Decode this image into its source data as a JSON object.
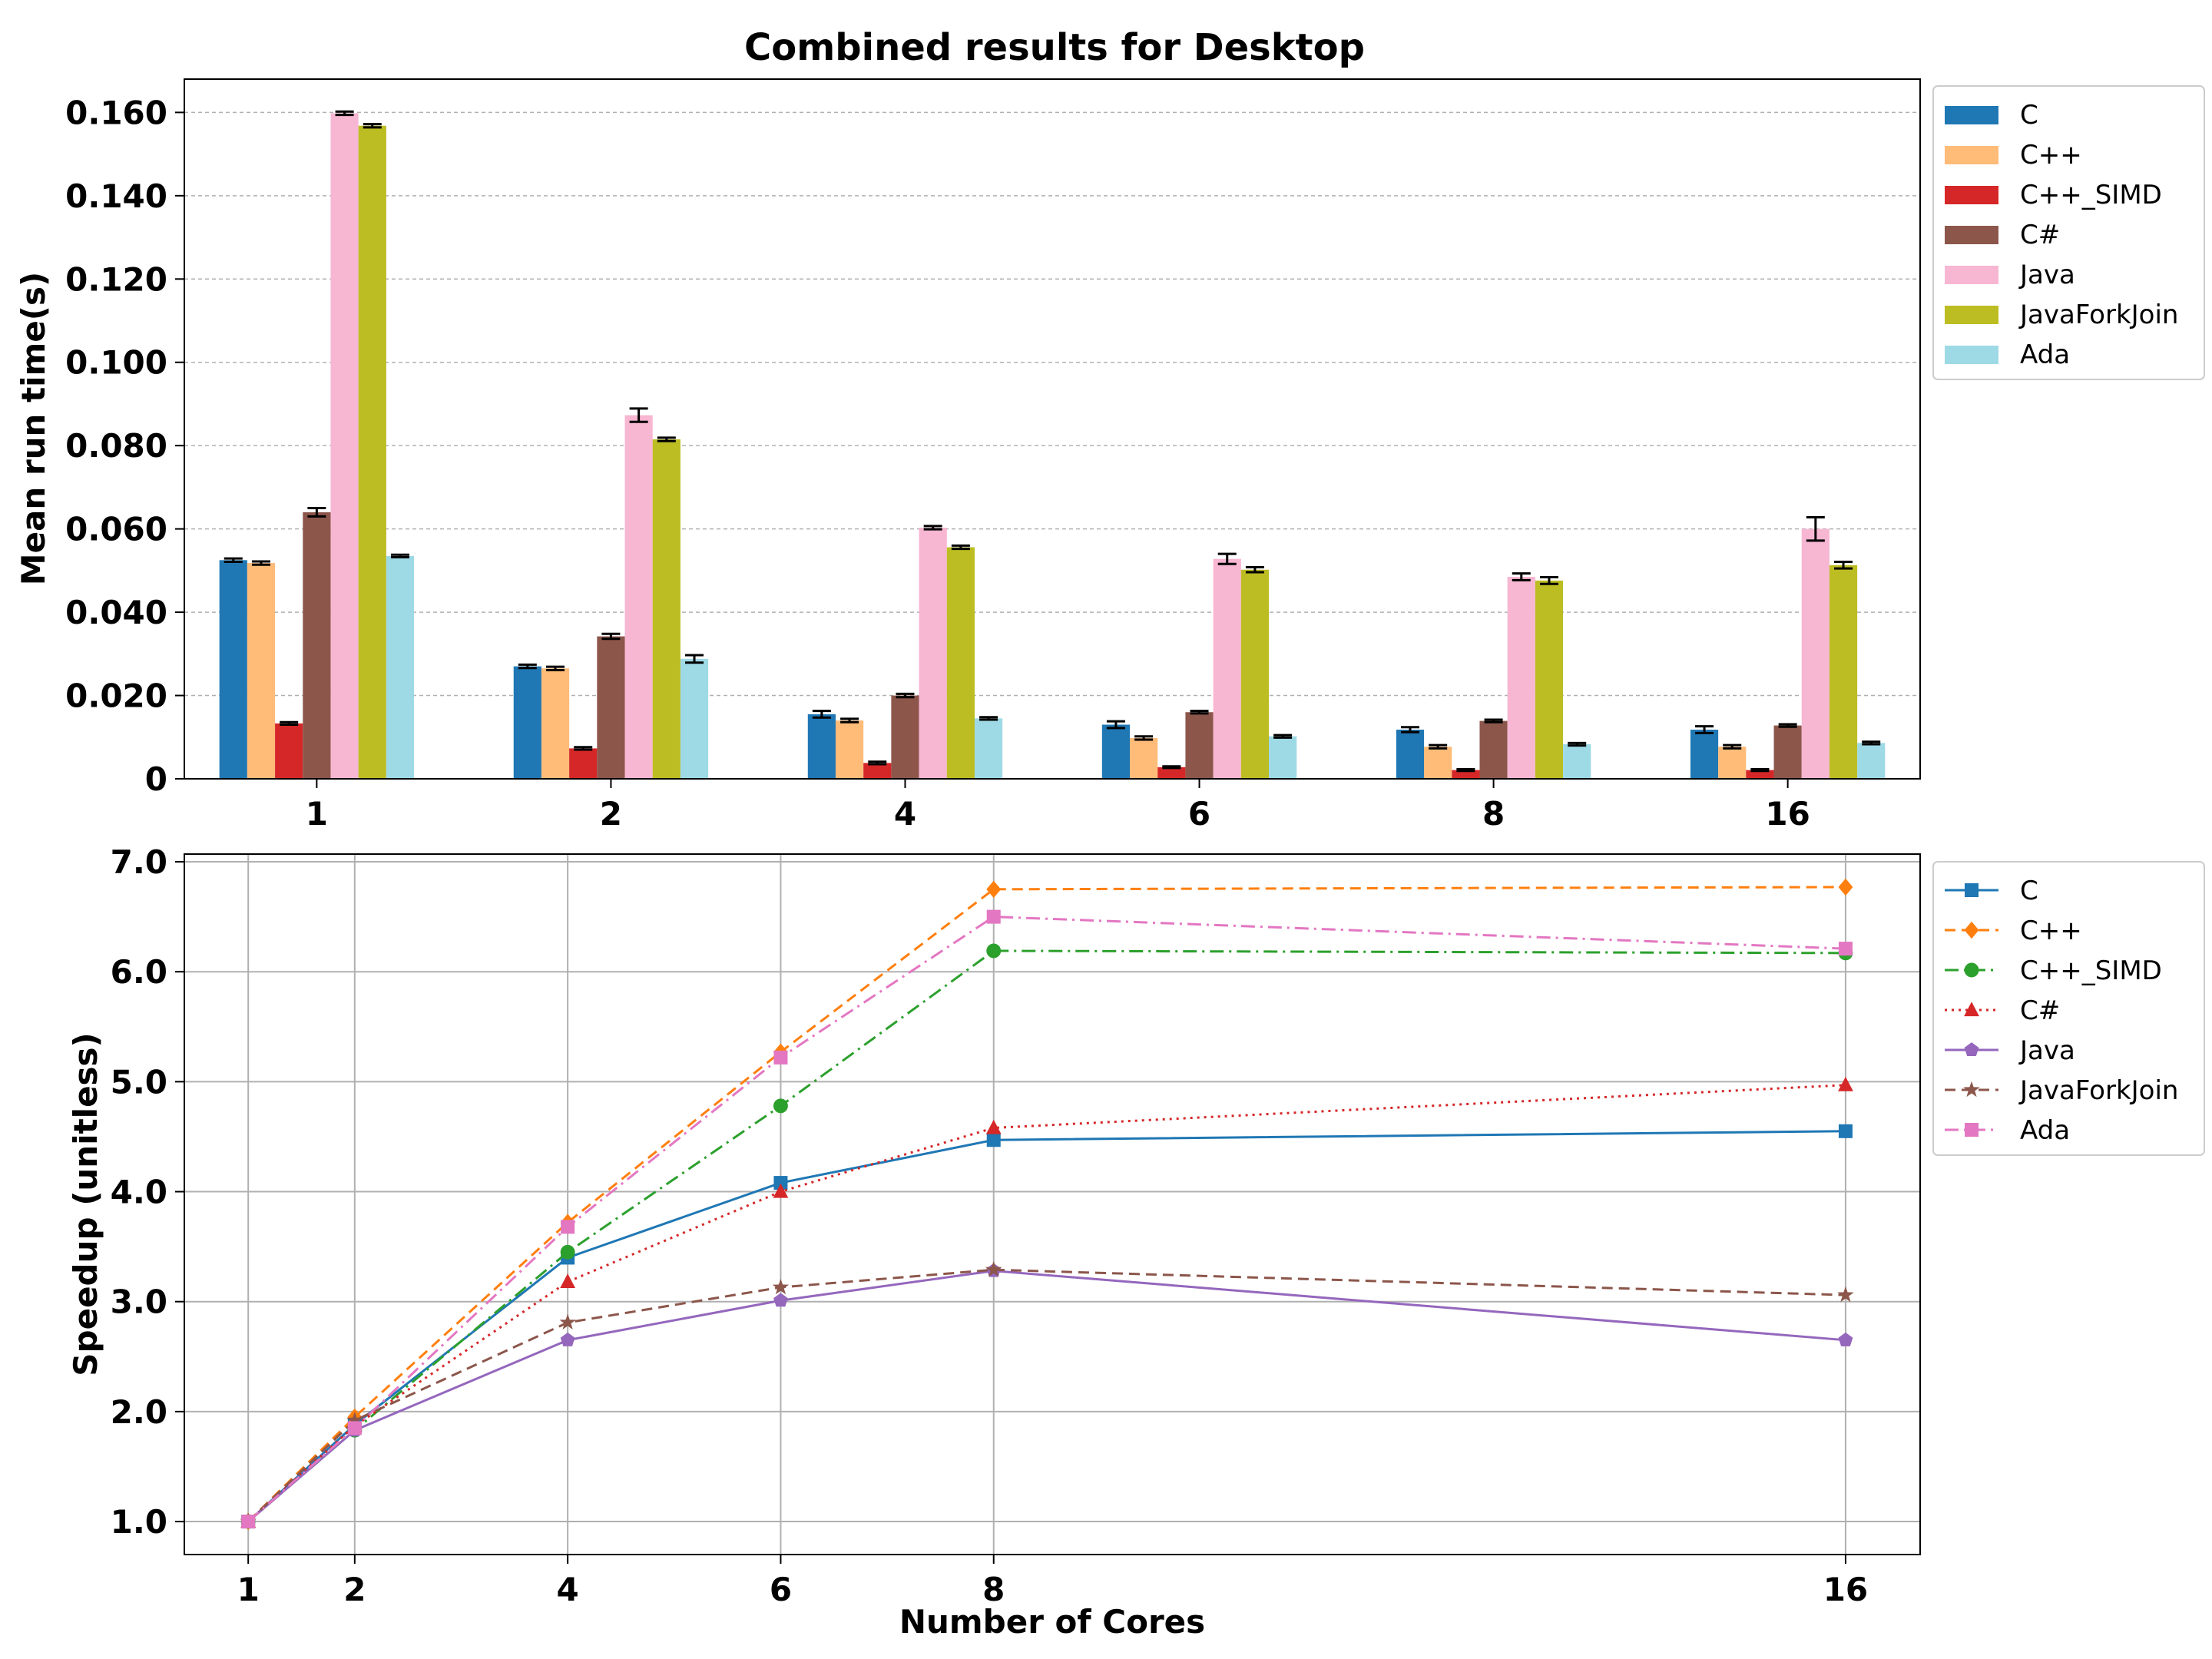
{
  "figure": {
    "title": "Combined results for Desktop"
  },
  "colors": {
    "C": "#1f77b4",
    "C++": "#ffbb78",
    "C++_SIMD": "#d62728",
    "C#": "#8c564b",
    "Java": "#f7b6d2",
    "JavaForkJoin": "#bcbd22",
    "Ada": "#9edae5"
  },
  "chart_data": [
    {
      "type": "bar",
      "title": "Combined results for Desktop",
      "xlabel": "",
      "ylabel": "Mean run time(s)",
      "categories": [
        "1",
        "2",
        "4",
        "6",
        "8",
        "16"
      ],
      "ylim": [
        0,
        0.168
      ],
      "yticks": [
        0,
        0.02,
        0.04,
        0.06,
        0.08,
        0.1,
        0.12,
        0.14,
        0.16
      ],
      "ytick_labels": [
        "0",
        "0.020",
        "0.040",
        "0.060",
        "0.080",
        "0.100",
        "0.120",
        "0.140",
        "0.160"
      ],
      "grid": "y",
      "legend": "outside-right",
      "series": [
        {
          "name": "C",
          "color": "#1f77b4",
          "values": [
            0.0525,
            0.027,
            0.0155,
            0.013,
            0.0118,
            0.0118
          ],
          "errors": [
            0.0004,
            0.0004,
            0.0008,
            0.0008,
            0.0006,
            0.0008
          ]
        },
        {
          "name": "C++",
          "color": "#ffbb78",
          "values": [
            0.0518,
            0.0265,
            0.014,
            0.0098,
            0.0077,
            0.0077
          ],
          "errors": [
            0.0004,
            0.0004,
            0.0004,
            0.0004,
            0.0004,
            0.0004
          ]
        },
        {
          "name": "C++_SIMD",
          "color": "#d62728",
          "values": [
            0.0133,
            0.0073,
            0.0038,
            0.0028,
            0.0021,
            0.0021
          ],
          "errors": [
            0.0003,
            0.0003,
            0.0003,
            0.0002,
            0.0002,
            0.0002
          ]
        },
        {
          "name": "C#",
          "color": "#8c564b",
          "values": [
            0.064,
            0.0342,
            0.02,
            0.016,
            0.0139,
            0.0128
          ],
          "errors": [
            0.001,
            0.0006,
            0.0004,
            0.0003,
            0.0003,
            0.0003
          ]
        },
        {
          "name": "Java",
          "color": "#f7b6d2",
          "values": [
            0.1598,
            0.0873,
            0.0603,
            0.0528,
            0.0485,
            0.06
          ],
          "errors": [
            0.0004,
            0.0016,
            0.0004,
            0.0012,
            0.0008,
            0.0028
          ]
        },
        {
          "name": "JavaForkJoin",
          "color": "#bcbd22",
          "values": [
            0.1568,
            0.0815,
            0.0556,
            0.0502,
            0.0476,
            0.0513
          ],
          "errors": [
            0.0004,
            0.0004,
            0.0004,
            0.0006,
            0.0008,
            0.0008
          ]
        },
        {
          "name": "Ada",
          "color": "#9edae5",
          "values": [
            0.0535,
            0.0288,
            0.0145,
            0.0102,
            0.0083,
            0.0086
          ],
          "errors": [
            0.0003,
            0.0009,
            0.0003,
            0.0003,
            0.0003,
            0.0003
          ]
        }
      ]
    },
    {
      "type": "line",
      "title": "",
      "xlabel": "Number of Cores",
      "ylabel": "Speedup (unitless)",
      "x": [
        1,
        2,
        4,
        6,
        8,
        16
      ],
      "xtick_labels": [
        "1",
        "2",
        "4",
        "6",
        "8",
        "16"
      ],
      "xlim": [
        0.4,
        16.7
      ],
      "ylim": [
        0.7,
        7.07
      ],
      "yticks": [
        1,
        2,
        3,
        4,
        5,
        6,
        7
      ],
      "ytick_labels": [
        "1.0",
        "2.0",
        "3.0",
        "4.0",
        "5.0",
        "6.0",
        "7.0"
      ],
      "grid": "both",
      "legend": "outside-right",
      "series": [
        {
          "name": "C",
          "color": "#1f77b4",
          "dash": "solid",
          "marker": "square",
          "values": [
            1.0,
            1.88,
            3.4,
            4.08,
            4.47,
            4.55
          ]
        },
        {
          "name": "C++",
          "color": "#ff7f0e",
          "dash": "dashed",
          "marker": "diamond",
          "values": [
            1.0,
            1.95,
            3.72,
            5.27,
            6.75,
            6.77
          ]
        },
        {
          "name": "C++_SIMD",
          "color": "#2ca02c",
          "dash": "dashdot",
          "marker": "circle",
          "values": [
            1.0,
            1.83,
            3.45,
            4.78,
            6.19,
            6.17
          ]
        },
        {
          "name": "C#",
          "color": "#d62728",
          "dash": "dotted",
          "marker": "triangle",
          "values": [
            1.0,
            1.87,
            3.18,
            4.0,
            4.58,
            4.97
          ]
        },
        {
          "name": "Java",
          "color": "#9467bd",
          "dash": "solid",
          "marker": "pentagon",
          "values": [
            1.0,
            1.83,
            2.65,
            3.01,
            3.28,
            2.65
          ]
        },
        {
          "name": "JavaForkJoin",
          "color": "#8c564b",
          "dash": "dashed",
          "marker": "star",
          "values": [
            1.0,
            1.92,
            2.81,
            3.13,
            3.29,
            3.06
          ]
        },
        {
          "name": "Ada",
          "color": "#e377c2",
          "dash": "dashdot",
          "marker": "square",
          "values": [
            1.0,
            1.85,
            3.68,
            5.22,
            6.5,
            6.21
          ]
        }
      ]
    }
  ]
}
